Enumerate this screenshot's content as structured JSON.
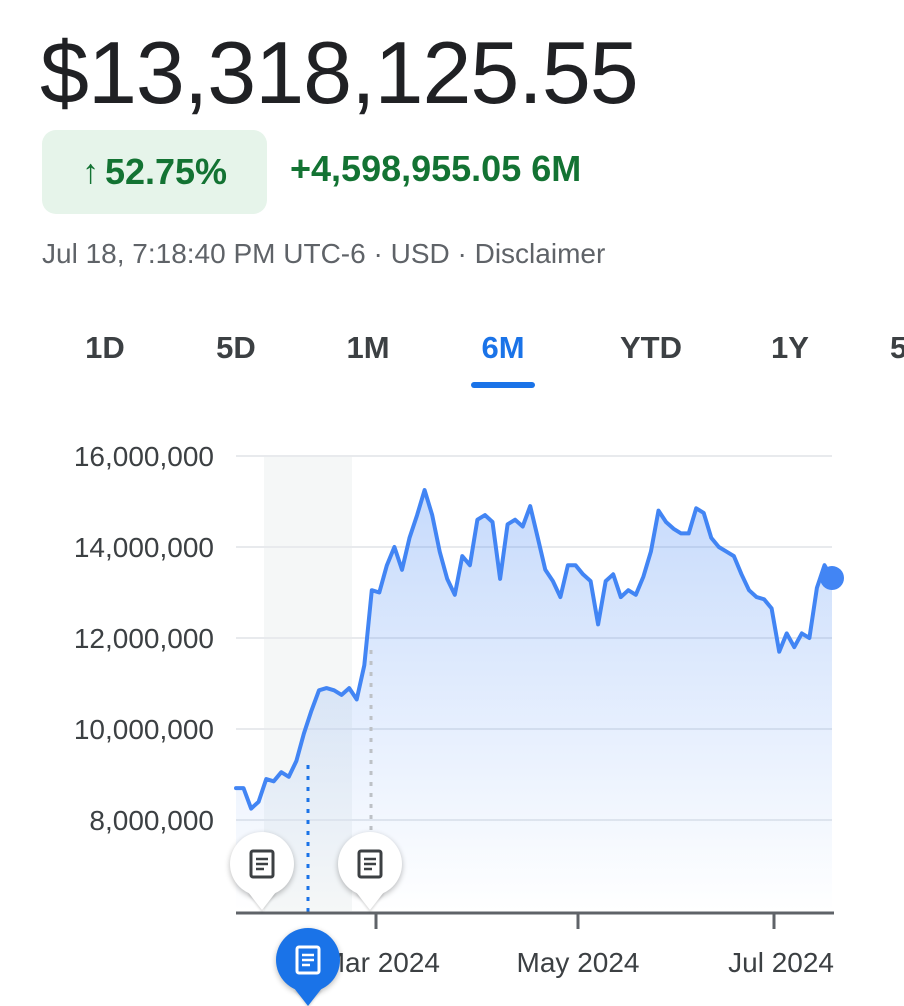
{
  "header": {
    "price": "$13,318,125.55",
    "change_percent": "52.75%",
    "change_arrow_icon": "arrow-up-icon",
    "change_absolute": "+4,598,955.05 6M",
    "timestamp": "Jul 18, 7:18:40 PM UTC-6",
    "currency": "USD",
    "disclaimer": "Disclaimer",
    "separator": "·"
  },
  "tabs": [
    {
      "label": "1D",
      "active": false
    },
    {
      "label": "5D",
      "active": false
    },
    {
      "label": "1M",
      "active": false
    },
    {
      "label": "6M",
      "active": true
    },
    {
      "label": "YTD",
      "active": false
    },
    {
      "label": "1Y",
      "active": false
    },
    {
      "label": "5",
      "active": false
    }
  ],
  "colors": {
    "accent": "#1a73e8",
    "line": "#4285f4",
    "positive": "#137333",
    "positive_bg": "#e6f4ea"
  },
  "markers": [
    {
      "icon": "document-icon",
      "active": false
    },
    {
      "icon": "document-icon",
      "active": false
    },
    {
      "icon": "document-icon",
      "active": true
    }
  ],
  "chart_data": {
    "type": "area",
    "x_tick_labels": [
      "Mar 2024",
      "May 2024",
      "Jul 2024"
    ],
    "y_tick_labels": [
      "16,000,000",
      "14,000,000",
      "12,000,000",
      "10,000,000",
      "8,000,000"
    ],
    "ylim": [
      6000000,
      16000000
    ],
    "grid": true,
    "series": [
      {
        "values": [
          8700000,
          8700000,
          8250000,
          8400000,
          8900000,
          8850000,
          9050000,
          8950000,
          9300000,
          9900000,
          10400000,
          10850000,
          10900000,
          10850000,
          10750000,
          10900000,
          10650000,
          11400000,
          13050000,
          13000000,
          13600000,
          14000000,
          13500000,
          14200000,
          14700000,
          15250000,
          14700000,
          13900000,
          13300000,
          12950000,
          13800000,
          13600000,
          14600000,
          14700000,
          14550000,
          13300000,
          14500000,
          14600000,
          14450000,
          14900000,
          14200000,
          13500000,
          13250000,
          12900000,
          13600000,
          13600000,
          13400000,
          13250000,
          12300000,
          13250000,
          13400000,
          12900000,
          13050000,
          12950000,
          13350000,
          13900000,
          14800000,
          14550000,
          14400000,
          14300000,
          14300000,
          14850000,
          14750000,
          14200000,
          14000000,
          13900000,
          13800000,
          13400000,
          13050000,
          12900000,
          12850000,
          12650000,
          11700000,
          12100000,
          11800000,
          12100000,
          12000000,
          13100000,
          13600000,
          13318125
        ]
      }
    ]
  }
}
